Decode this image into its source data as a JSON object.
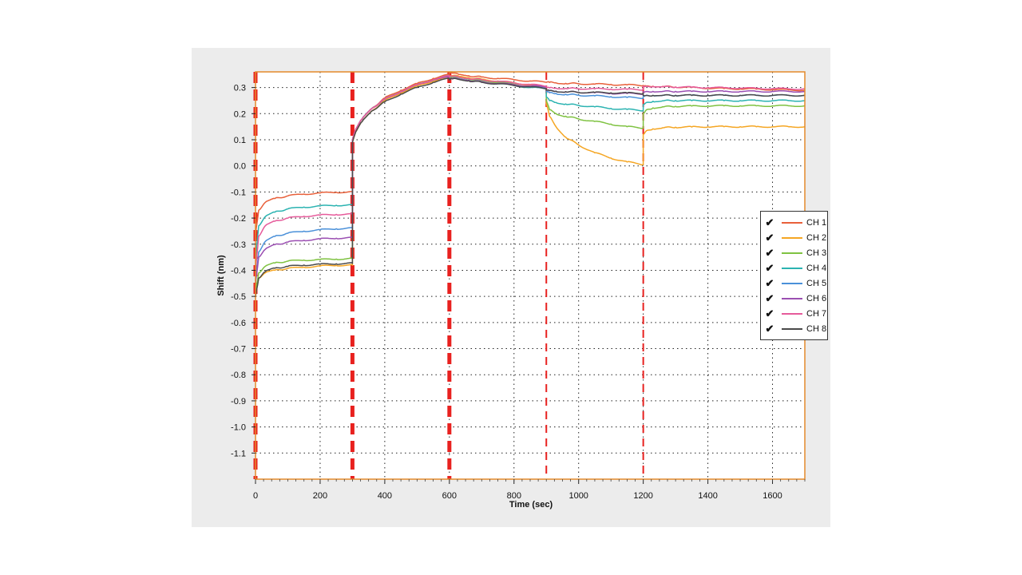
{
  "chart_data": {
    "type": "line",
    "title": "",
    "xlabel": "Time (sec)",
    "ylabel": "Shift (nm)",
    "xlim": [
      0,
      1700
    ],
    "ylim": [
      -1.2,
      0.36
    ],
    "x_ticks": [
      0,
      200,
      400,
      600,
      800,
      1000,
      1200,
      1400,
      1600
    ],
    "y_ticks": [
      0.3,
      0.2,
      0.1,
      0.0,
      -0.1,
      -0.2,
      -0.3,
      -0.4,
      -0.5,
      -0.6,
      -0.7,
      -0.8,
      -0.9,
      -1.0,
      -1.1
    ],
    "y_tick_labels": [
      "0.3",
      "0.2",
      "0.1",
      "0.0",
      "-0.1",
      "-0.2",
      "-0.3",
      "-0.4",
      "-0.5",
      "-0.6",
      "-0.7",
      "-0.8",
      "-0.9",
      "-1.0",
      "-1.1"
    ],
    "grid": true,
    "step_markers": [
      0,
      300,
      600,
      900,
      1200
    ],
    "legend_position": "right",
    "x": [
      0,
      10,
      30,
      60,
      100,
      150,
      200,
      250,
      300,
      300,
      310,
      330,
      360,
      400,
      450,
      500,
      550,
      600,
      600,
      610,
      630,
      660,
      700,
      750,
      800,
      850,
      900,
      900,
      910,
      930,
      960,
      1000,
      1050,
      1100,
      1150,
      1200,
      1200,
      1210,
      1230,
      1260,
      1300,
      1350,
      1400,
      1450,
      1500,
      1550,
      1600,
      1650,
      1700
    ],
    "series": [
      {
        "name": "CH 1",
        "color": "#e8603a",
        "values": [
          -0.26,
          -0.17,
          -0.14,
          -0.125,
          -0.115,
          -0.108,
          -0.104,
          -0.101,
          -0.1,
          0.1,
          0.14,
          0.18,
          0.22,
          0.26,
          0.29,
          0.315,
          0.335,
          0.35,
          0.355,
          0.355,
          0.35,
          0.345,
          0.34,
          0.335,
          0.33,
          0.325,
          0.32,
          0.32,
          0.32,
          0.318,
          0.316,
          0.315,
          0.313,
          0.312,
          0.31,
          0.308,
          0.308,
          0.306,
          0.305,
          0.304,
          0.302,
          0.3,
          0.298,
          0.296,
          0.295,
          0.294,
          0.292,
          0.291,
          0.29
        ]
      },
      {
        "name": "CH 2",
        "color": "#f5a623",
        "values": [
          -0.49,
          -0.43,
          -0.41,
          -0.4,
          -0.393,
          -0.388,
          -0.384,
          -0.381,
          -0.38,
          0.09,
          0.13,
          0.17,
          0.21,
          0.25,
          0.28,
          0.305,
          0.325,
          0.34,
          0.34,
          0.345,
          0.343,
          0.338,
          0.332,
          0.325,
          0.318,
          0.31,
          0.3,
          0.24,
          0.19,
          0.15,
          0.11,
          0.08,
          0.05,
          0.03,
          0.015,
          0.005,
          0.12,
          0.135,
          0.142,
          0.146,
          0.148,
          0.149,
          0.15,
          0.15,
          0.15,
          0.15,
          0.15,
          0.15,
          0.15
        ]
      },
      {
        "name": "CH 3",
        "color": "#7fc241",
        "values": [
          -0.48,
          -0.41,
          -0.385,
          -0.372,
          -0.365,
          -0.361,
          -0.359,
          -0.357,
          -0.355,
          0.1,
          0.14,
          0.18,
          0.22,
          0.255,
          0.285,
          0.31,
          0.33,
          0.345,
          0.335,
          0.34,
          0.338,
          0.333,
          0.327,
          0.32,
          0.313,
          0.305,
          0.3,
          0.25,
          0.215,
          0.2,
          0.19,
          0.18,
          0.17,
          0.16,
          0.15,
          0.145,
          0.2,
          0.215,
          0.222,
          0.226,
          0.228,
          0.229,
          0.23,
          0.23,
          0.23,
          0.23,
          0.23,
          0.23,
          0.23
        ]
      },
      {
        "name": "CH 4",
        "color": "#2bb3b1",
        "values": [
          -0.35,
          -0.23,
          -0.195,
          -0.177,
          -0.165,
          -0.158,
          -0.154,
          -0.151,
          -0.15,
          0.1,
          0.14,
          0.18,
          0.22,
          0.255,
          0.285,
          0.31,
          0.33,
          0.345,
          0.33,
          0.335,
          0.333,
          0.328,
          0.322,
          0.315,
          0.308,
          0.3,
          0.295,
          0.265,
          0.25,
          0.243,
          0.237,
          0.232,
          0.226,
          0.22,
          0.216,
          0.212,
          0.235,
          0.243,
          0.247,
          0.249,
          0.25,
          0.25,
          0.25,
          0.25,
          0.25,
          0.25,
          0.25,
          0.25,
          0.25
        ]
      },
      {
        "name": "CH 5",
        "color": "#4a90d9",
        "values": [
          -0.44,
          -0.33,
          -0.29,
          -0.27,
          -0.258,
          -0.25,
          -0.245,
          -0.241,
          -0.238,
          0.1,
          0.14,
          0.18,
          0.22,
          0.255,
          0.285,
          0.31,
          0.33,
          0.345,
          0.33,
          0.335,
          0.333,
          0.328,
          0.322,
          0.315,
          0.31,
          0.305,
          0.3,
          0.285,
          0.28,
          0.277,
          0.274,
          0.271,
          0.268,
          0.265,
          0.262,
          0.26,
          0.268,
          0.27,
          0.27,
          0.27,
          0.27,
          0.27,
          0.27,
          0.27,
          0.27,
          0.27,
          0.27,
          0.27,
          0.27
        ]
      },
      {
        "name": "CH 6",
        "color": "#9b4fb2",
        "values": [
          -0.45,
          -0.35,
          -0.32,
          -0.302,
          -0.292,
          -0.285,
          -0.28,
          -0.277,
          -0.275,
          0.1,
          0.14,
          0.18,
          0.22,
          0.255,
          0.285,
          0.31,
          0.33,
          0.34,
          0.33,
          0.335,
          0.333,
          0.328,
          0.322,
          0.316,
          0.311,
          0.306,
          0.302,
          0.29,
          0.288,
          0.286,
          0.284,
          0.282,
          0.28,
          0.278,
          0.277,
          0.276,
          0.284,
          0.285,
          0.285,
          0.285,
          0.285,
          0.285,
          0.285,
          0.285,
          0.285,
          0.285,
          0.285,
          0.285,
          0.285
        ]
      },
      {
        "name": "CH 7",
        "color": "#e65b9b",
        "values": [
          -0.4,
          -0.27,
          -0.23,
          -0.212,
          -0.2,
          -0.193,
          -0.189,
          -0.186,
          -0.185,
          0.1,
          0.14,
          0.18,
          0.22,
          0.255,
          0.285,
          0.31,
          0.33,
          0.345,
          0.34,
          0.343,
          0.34,
          0.335,
          0.33,
          0.324,
          0.318,
          0.312,
          0.305,
          0.3,
          0.299,
          0.298,
          0.297,
          0.296,
          0.295,
          0.294,
          0.293,
          0.292,
          0.305,
          0.305,
          0.304,
          0.303,
          0.302,
          0.301,
          0.3,
          0.299,
          0.298,
          0.297,
          0.296,
          0.295,
          0.295
        ]
      },
      {
        "name": "CH 8",
        "color": "#4a4a4a",
        "values": [
          -0.5,
          -0.43,
          -0.405,
          -0.392,
          -0.385,
          -0.38,
          -0.377,
          -0.375,
          -0.373,
          0.09,
          0.13,
          0.17,
          0.21,
          0.245,
          0.275,
          0.3,
          0.32,
          0.335,
          0.33,
          0.333,
          0.331,
          0.326,
          0.32,
          0.314,
          0.308,
          0.302,
          0.296,
          0.29,
          0.288,
          0.286,
          0.284,
          0.282,
          0.281,
          0.28,
          0.279,
          0.278,
          0.27,
          0.27,
          0.27,
          0.27,
          0.27,
          0.27,
          0.27,
          0.27,
          0.27,
          0.27,
          0.27,
          0.27,
          0.27
        ]
      }
    ]
  },
  "legend": {
    "check_glyph": "✔",
    "items": [
      {
        "label": "CH 1"
      },
      {
        "label": "CH 2"
      },
      {
        "label": "CH 3"
      },
      {
        "label": "CH 4"
      },
      {
        "label": "CH 5"
      },
      {
        "label": "CH 6"
      },
      {
        "label": "CH 7"
      },
      {
        "label": "CH 8"
      }
    ]
  },
  "colors": {
    "marker": "#e8211f",
    "frame": "#e38a2b",
    "grid": "#222222"
  }
}
